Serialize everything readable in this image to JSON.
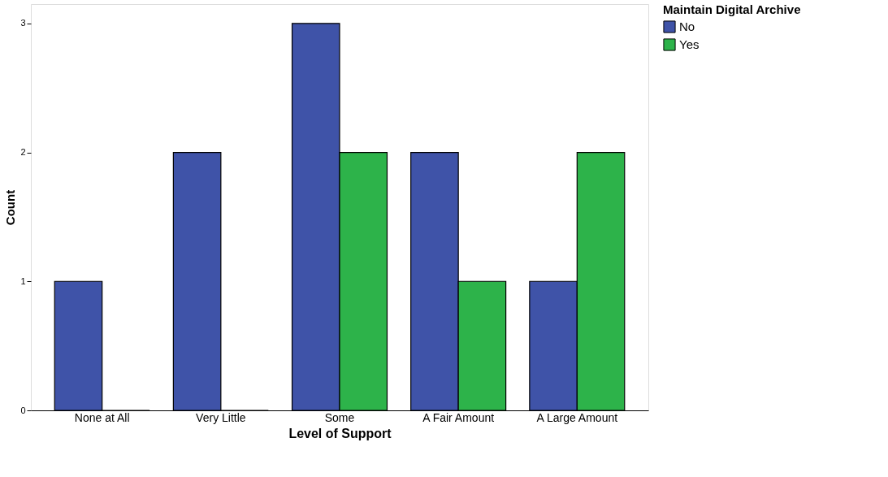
{
  "chart_data": {
    "type": "bar",
    "xlabel": "Level of Support",
    "ylabel": "Count",
    "legend_title": "Maintain Digital Archive",
    "categories": [
      "None at All",
      "Very Little",
      "Some",
      "A Fair Amount",
      "A Large Amount"
    ],
    "series": [
      {
        "name": "No",
        "color": "#3f53a8",
        "values": [
          1,
          2,
          3,
          2,
          1
        ]
      },
      {
        "name": "Yes",
        "color": "#2db34a",
        "values": [
          0,
          0,
          2,
          1,
          2
        ]
      }
    ],
    "ylim": [
      0,
      3.15
    ],
    "yticks": [
      0,
      1,
      2,
      3
    ],
    "grid": false,
    "legend": "top right"
  }
}
